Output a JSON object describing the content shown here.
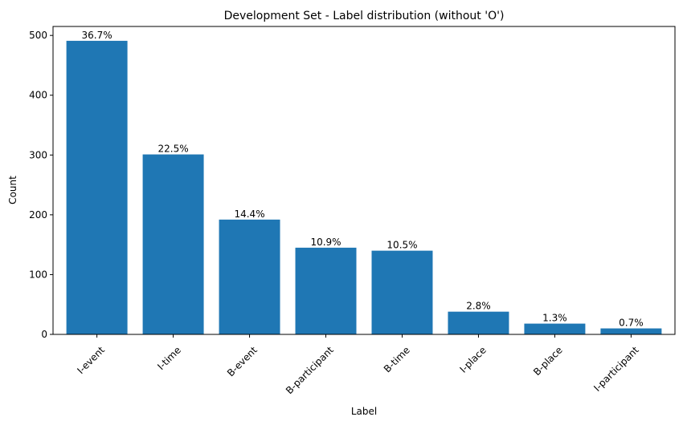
{
  "chart_data": {
    "type": "bar",
    "title": "Development Set - Label distribution (without 'O')",
    "xlabel": "Label",
    "ylabel": "Count",
    "categories": [
      "I-event",
      "I-time",
      "B-event",
      "B-participant",
      "B-time",
      "I-place",
      "B-place",
      "I-participant"
    ],
    "values": [
      491,
      301,
      192,
      145,
      140,
      38,
      18,
      10
    ],
    "data_labels": [
      "36.7%",
      "22.5%",
      "14.4%",
      "10.9%",
      "10.5%",
      "2.8%",
      "1.3%",
      "0.7%"
    ],
    "ylim": [
      0,
      515
    ],
    "yticks": [
      0,
      100,
      200,
      300,
      400,
      500
    ],
    "bar_color": "#1f77b4",
    "grid": false,
    "legend": "none"
  }
}
